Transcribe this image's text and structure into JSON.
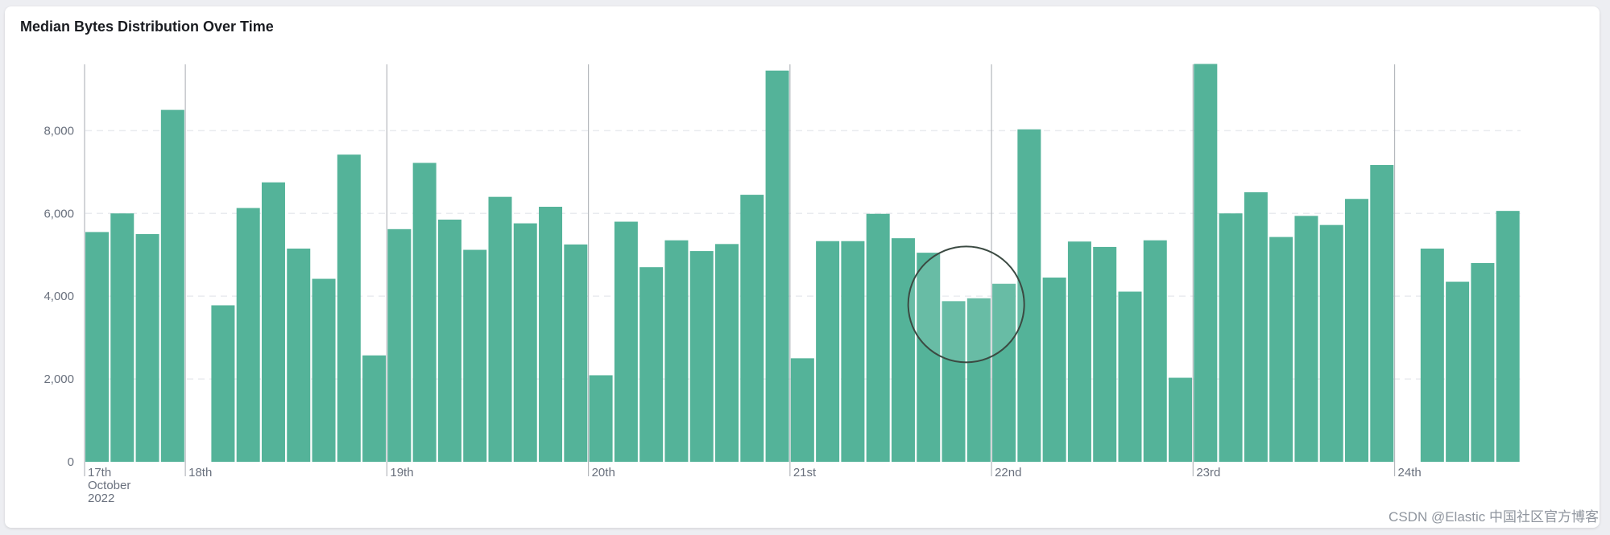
{
  "panel": {
    "title": "Median Bytes Distribution Over Time"
  },
  "watermark": "CSDN @Elastic 中国社区官方博客",
  "colors": {
    "bar": "#54b399",
    "grid": "#e9ebef",
    "day_line": "#b5b8bd",
    "axis_text": "#69707d",
    "highlight_ring": "#3b4a42"
  },
  "chart_data": {
    "type": "bar",
    "title": "Median Bytes Distribution Over Time",
    "xlabel": "",
    "ylabel": "",
    "ylim": [
      0,
      9600
    ],
    "yticks": [
      0,
      2000,
      4000,
      6000,
      8000
    ],
    "ytick_labels": [
      "0",
      "2,000",
      "4,000",
      "6,000",
      "8,000"
    ],
    "grid": "horizontal dashed",
    "interval_hours": 3,
    "day_labels": [
      {
        "label": "17th",
        "sub": [
          "October",
          "2022"
        ],
        "start_index": 0
      },
      {
        "label": "18th",
        "start_index": 4
      },
      {
        "label": "19th",
        "start_index": 12
      },
      {
        "label": "20th",
        "start_index": 20
      },
      {
        "label": "21st",
        "start_index": 28
      },
      {
        "label": "22nd",
        "start_index": 36
      },
      {
        "label": "23rd",
        "start_index": 44
      },
      {
        "label": "24th",
        "start_index": 52
      }
    ],
    "values": [
      5550,
      6000,
      5500,
      8500,
      null,
      3780,
      6130,
      6750,
      5150,
      4420,
      7420,
      2570,
      5620,
      7220,
      5850,
      5120,
      6400,
      5760,
      6160,
      5250,
      2090,
      5800,
      4700,
      5350,
      5090,
      5260,
      6450,
      9450,
      2500,
      5330,
      5330,
      5990,
      5400,
      5050,
      3880,
      3950,
      4300,
      8030,
      4450,
      5320,
      5190,
      4110,
      5350,
      2030,
      9610,
      6000,
      6510,
      5430,
      5940,
      5720,
      6350,
      7170,
      null,
      5150,
      4350,
      4800,
      6060
    ],
    "highlight": {
      "indices": [
        34,
        35
      ],
      "note": "circled"
    }
  }
}
